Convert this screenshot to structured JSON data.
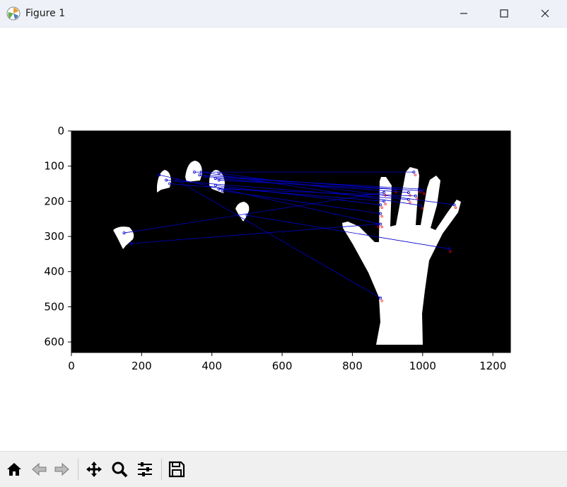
{
  "window": {
    "title": "Figure 1"
  },
  "icons": {
    "app": "matplotlib-figure-icon",
    "minimize": "minimize-icon",
    "maximize": "maximize-icon",
    "close": "close-icon"
  },
  "toolbar": {
    "buttons": [
      {
        "name": "home-button",
        "icon": "home-icon"
      },
      {
        "name": "back-button",
        "icon": "arrow-left-icon"
      },
      {
        "name": "forward-button",
        "icon": "arrow-right-icon"
      },
      {
        "name": "pan-button",
        "icon": "move-icon"
      },
      {
        "name": "zoom-button",
        "icon": "magnifier-icon"
      },
      {
        "name": "configure-subplots-button",
        "icon": "sliders-icon"
      },
      {
        "name": "save-button",
        "icon": "floppy-disk-icon"
      }
    ]
  },
  "chart_data": {
    "type": "image",
    "description_shown": "binary hand image with matched keypoints",
    "xlim": [
      0,
      1250
    ],
    "ylim": [
      630,
      0
    ],
    "x_ticks": [
      0,
      200,
      400,
      600,
      800,
      1000,
      1200
    ],
    "y_ticks": [
      0,
      100,
      200,
      300,
      400,
      500,
      600
    ],
    "colors": {
      "background": "#000000",
      "shape": "#ffffff",
      "match_line": "#0000cc",
      "keypoint": "#ff0000"
    },
    "matches": [
      [
        350,
        117,
        975,
        117
      ],
      [
        370,
        117,
        995,
        212
      ],
      [
        365,
        125,
        920,
        165
      ],
      [
        380,
        130,
        990,
        165
      ],
      [
        410,
        135,
        960,
        175
      ],
      [
        420,
        140,
        1000,
        170
      ],
      [
        410,
        155,
        880,
        210
      ],
      [
        420,
        165,
        980,
        185
      ],
      [
        430,
        170,
        880,
        235
      ],
      [
        420,
        120,
        1090,
        210
      ],
      [
        250,
        125,
        880,
        265
      ],
      [
        270,
        140,
        960,
        195
      ],
      [
        280,
        150,
        890,
        200
      ],
      [
        150,
        290,
        890,
        175
      ],
      [
        170,
        320,
        870,
        265
      ],
      [
        300,
        140,
        880,
        475
      ],
      [
        500,
        240,
        1075,
        335
      ]
    ]
  }
}
